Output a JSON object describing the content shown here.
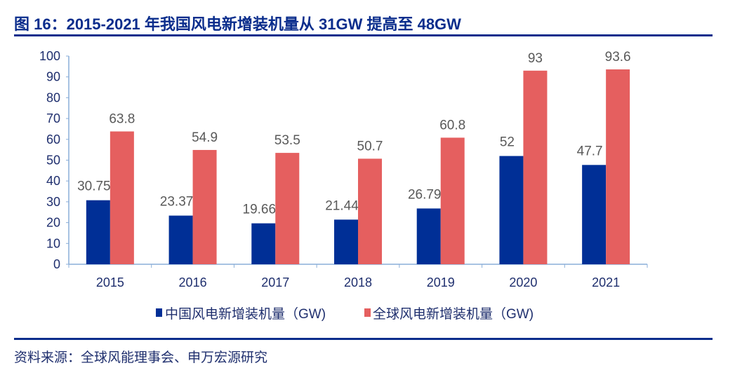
{
  "title": "图 16：2015-2021 年我国风电新增装机量从 31GW 提高至 48GW",
  "source": "资料来源：全球风能理事会、申万宏源研究",
  "colors": {
    "china": "#002f96",
    "global": "#e55f5f",
    "rule": "#0a2d8c",
    "text": "#1f2f6e",
    "label": "#595959",
    "axis": "#8aaed8"
  },
  "chart_data": {
    "type": "bar",
    "categories": [
      "2015",
      "2016",
      "2017",
      "2018",
      "2019",
      "2020",
      "2021"
    ],
    "series": [
      {
        "name": "中国风电新增装机量（GW)",
        "values": [
          30.75,
          23.37,
          19.66,
          21.44,
          26.79,
          52,
          47.7
        ],
        "labels": [
          "30.75",
          "23.37",
          "19.66",
          "21.44",
          "26.79",
          "52",
          "47.7"
        ]
      },
      {
        "name": "全球风电新增装机量（GW)",
        "values": [
          63.8,
          54.9,
          53.5,
          50.7,
          60.8,
          93,
          93.6
        ],
        "labels": [
          "63.8",
          "54.9",
          "53.5",
          "50.7",
          "60.8",
          "93",
          "93.6"
        ]
      }
    ],
    "yticks": [
      "0",
      "10",
      "20",
      "30",
      "40",
      "50",
      "60",
      "70",
      "80",
      "90",
      "100"
    ],
    "ylim": [
      0,
      100
    ],
    "grid": false,
    "legend": "bottom"
  }
}
